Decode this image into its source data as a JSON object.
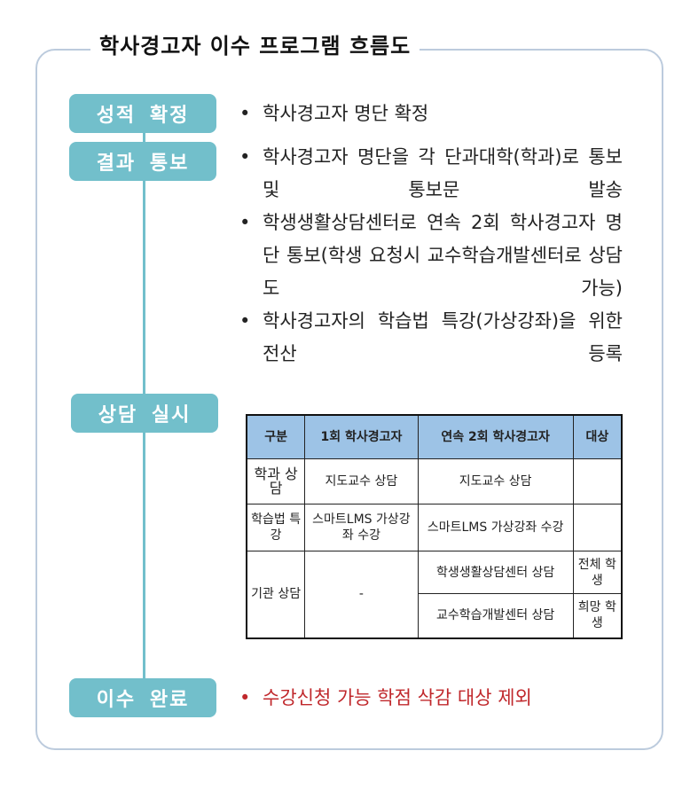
{
  "title": "학사경고자 이수 프로그램 흐름도",
  "steps": [
    {
      "label": "성적 확정",
      "bullets": [
        "학사경고자 명단 확정"
      ]
    },
    {
      "label": "결과 통보",
      "bullets": [
        "학사경고자 명단을 각 단과대학(학과)로 통보 및 통보문 발송",
        "학생생활상담센터로 연속 2회 학사경고자 명단 통보(학생 요청시 교수학습개발센터로 상담도 가능)",
        "학사경고자의 학습법 특강(가상강좌)을 위한 전산 등록"
      ]
    },
    {
      "label": "상담 실시"
    },
    {
      "label": "이수 완료",
      "bullets": [
        "수강신청 가능 학점 삭감 대상 제외"
      ]
    }
  ],
  "table": {
    "headers": [
      "구분",
      "1회 학사경고자",
      "연속 2회 학사경고자",
      "대상"
    ],
    "rows": [
      [
        "학과 상담",
        "지도교수 상담",
        "지도교수 상담",
        ""
      ],
      [
        "학습법 특강",
        "스마트LMS 가상강좌 수강",
        "스마트LMS 가상강좌 수강",
        ""
      ],
      [
        "기관 상담",
        "-",
        "학생생활상담센터 상담",
        "전체 학생"
      ],
      [
        "",
        "",
        "교수학습개발센터 상담",
        "희망 학생"
      ]
    ]
  },
  "colors": {
    "step": "#72bfcb",
    "frame": "#bccbdd",
    "table_header": "#9dc3e6",
    "highlight": "#c0282c"
  }
}
